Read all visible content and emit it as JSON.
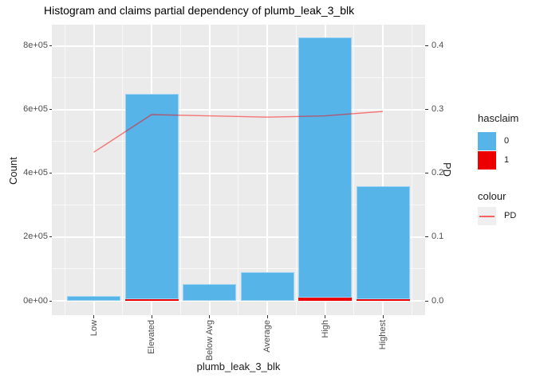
{
  "title": "Histogram and claims partial dependency of plumb_leak_3_blk",
  "chart_data": {
    "type": "bar",
    "subtype": "stacked histogram with partial-dependency line overlay",
    "title": "Histogram and claims partial dependency of plumb_leak_3_blk",
    "xlabel": "plumb_leak_3_blk",
    "ylabel_left": "Count",
    "ylabel_right": "PD",
    "grid": "on",
    "panel_background": "#EBEBEB",
    "categories": [
      "Low",
      "Elevated",
      "Below Avg",
      "Average",
      "High",
      "Highest"
    ],
    "series": [
      {
        "name": "hasclaim 0",
        "color": "#56B4E9",
        "values": [
          15000,
          645000,
          52000,
          90000,
          815000,
          355000
        ]
      },
      {
        "name": "hasclaim 1",
        "color": "#ED0000",
        "values": [
          0,
          5000,
          0,
          0,
          10000,
          5000
        ]
      }
    ],
    "line_series": {
      "name": "PD",
      "color": "rgba(255,0,0,0.5)",
      "values": [
        0.233,
        0.292,
        0.29,
        0.288,
        0.29,
        0.297
      ]
    },
    "axis_left": {
      "tick_labels": [
        "0e+00",
        "2e+05",
        "4e+05",
        "6e+05",
        "8e+05"
      ],
      "tick_values": [
        0,
        200000,
        400000,
        600000,
        800000
      ],
      "max": 800000
    },
    "axis_right": {
      "tick_labels": [
        "0.0",
        "0.1",
        "0.2",
        "0.3",
        "0.4"
      ],
      "tick_values": [
        0,
        0.1,
        0.2,
        0.3,
        0.4
      ],
      "max": 0.4
    }
  },
  "legend": {
    "fill_title": "hasclaim",
    "fill_items": [
      {
        "label": "0",
        "color": "#56B4E9"
      },
      {
        "label": "1",
        "color": "#ED0000"
      }
    ],
    "colour_title": "colour",
    "line_item": {
      "label": "PD",
      "color": "rgba(255,0,0,0.6)"
    }
  }
}
